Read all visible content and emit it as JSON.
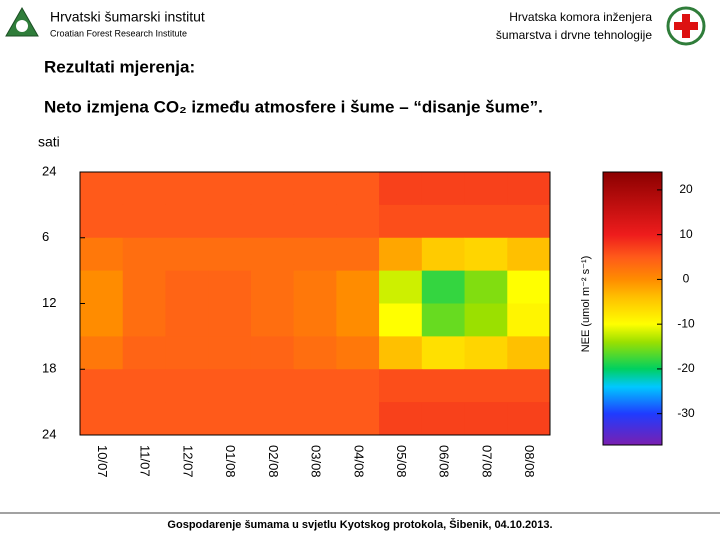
{
  "header": {
    "left_title": "Hrvatski šumarski institut",
    "left_subtitle": "Croatian Forest Research Institute",
    "right_line1": "Hrvatska komora inženjera",
    "right_line2": "šumarstva i drvne tehnologije"
  },
  "heading": "Rezultati mjerenja:",
  "footer": "Gospodarenje šumama u svjetlu Kyotskog protokola, Šibenik, 04.10.2013.",
  "chart_data": {
    "type": "heatmap",
    "title": "Neto izmjena CO₂ između atmosfere i šume – “disanje šume”.",
    "ylabel": "sati",
    "categories": [
      "10/07",
      "11/07",
      "12/07",
      "01/08",
      "02/08",
      "03/08",
      "04/08",
      "05/08",
      "06/08",
      "07/08",
      "08/08"
    ],
    "ylim": [
      0,
      24
    ],
    "y_reversed": true,
    "yticks": [
      {
        "value": 0,
        "label": "24"
      },
      6,
      12,
      18,
      24
    ],
    "row_edges": [
      0,
      3,
      6,
      9,
      12,
      15,
      18,
      21,
      24
    ],
    "z": [
      [
        5,
        5,
        5,
        5,
        5,
        5,
        5,
        7,
        7,
        7,
        7
      ],
      [
        5,
        5,
        5,
        5,
        5,
        5,
        5,
        6,
        6,
        6,
        6
      ],
      [
        2,
        3,
        3,
        3,
        3,
        3,
        3,
        -2,
        -5,
        -6,
        -4
      ],
      [
        0,
        3,
        4,
        4,
        3,
        2,
        0,
        -12,
        -18,
        -15,
        -10
      ],
      [
        0,
        3,
        4,
        4,
        3,
        2,
        0,
        -10,
        -16,
        -14,
        -9
      ],
      [
        2,
        4,
        4,
        4,
        4,
        3,
        2,
        -4,
        -7,
        -6,
        -4
      ],
      [
        5,
        5,
        5,
        5,
        5,
        5,
        5,
        6,
        6,
        6,
        6
      ],
      [
        5,
        5,
        5,
        5,
        5,
        5,
        5,
        7,
        7,
        7,
        7
      ]
    ],
    "colorbar_label": "NEE (umol m⁻² s⁻¹)",
    "clim": [
      -37,
      24
    ],
    "cticks": [
      20,
      10,
      0,
      -10,
      -20,
      -30
    ],
    "colorscale": [
      {
        "value": -37,
        "color": "#7a1fb0"
      },
      {
        "value": -30,
        "color": "#1f3cff"
      },
      {
        "value": -24,
        "color": "#00c8ff"
      },
      {
        "value": -20,
        "color": "#00d060"
      },
      {
        "value": -14,
        "color": "#9be000"
      },
      {
        "value": -10,
        "color": "#ffff00"
      },
      {
        "value": -4,
        "color": "#ffc000"
      },
      {
        "value": 0,
        "color": "#ff8c00"
      },
      {
        "value": 5,
        "color": "#ff5a1a"
      },
      {
        "value": 10,
        "color": "#ee1c1c"
      },
      {
        "value": 24,
        "color": "#8b0000"
      }
    ]
  }
}
